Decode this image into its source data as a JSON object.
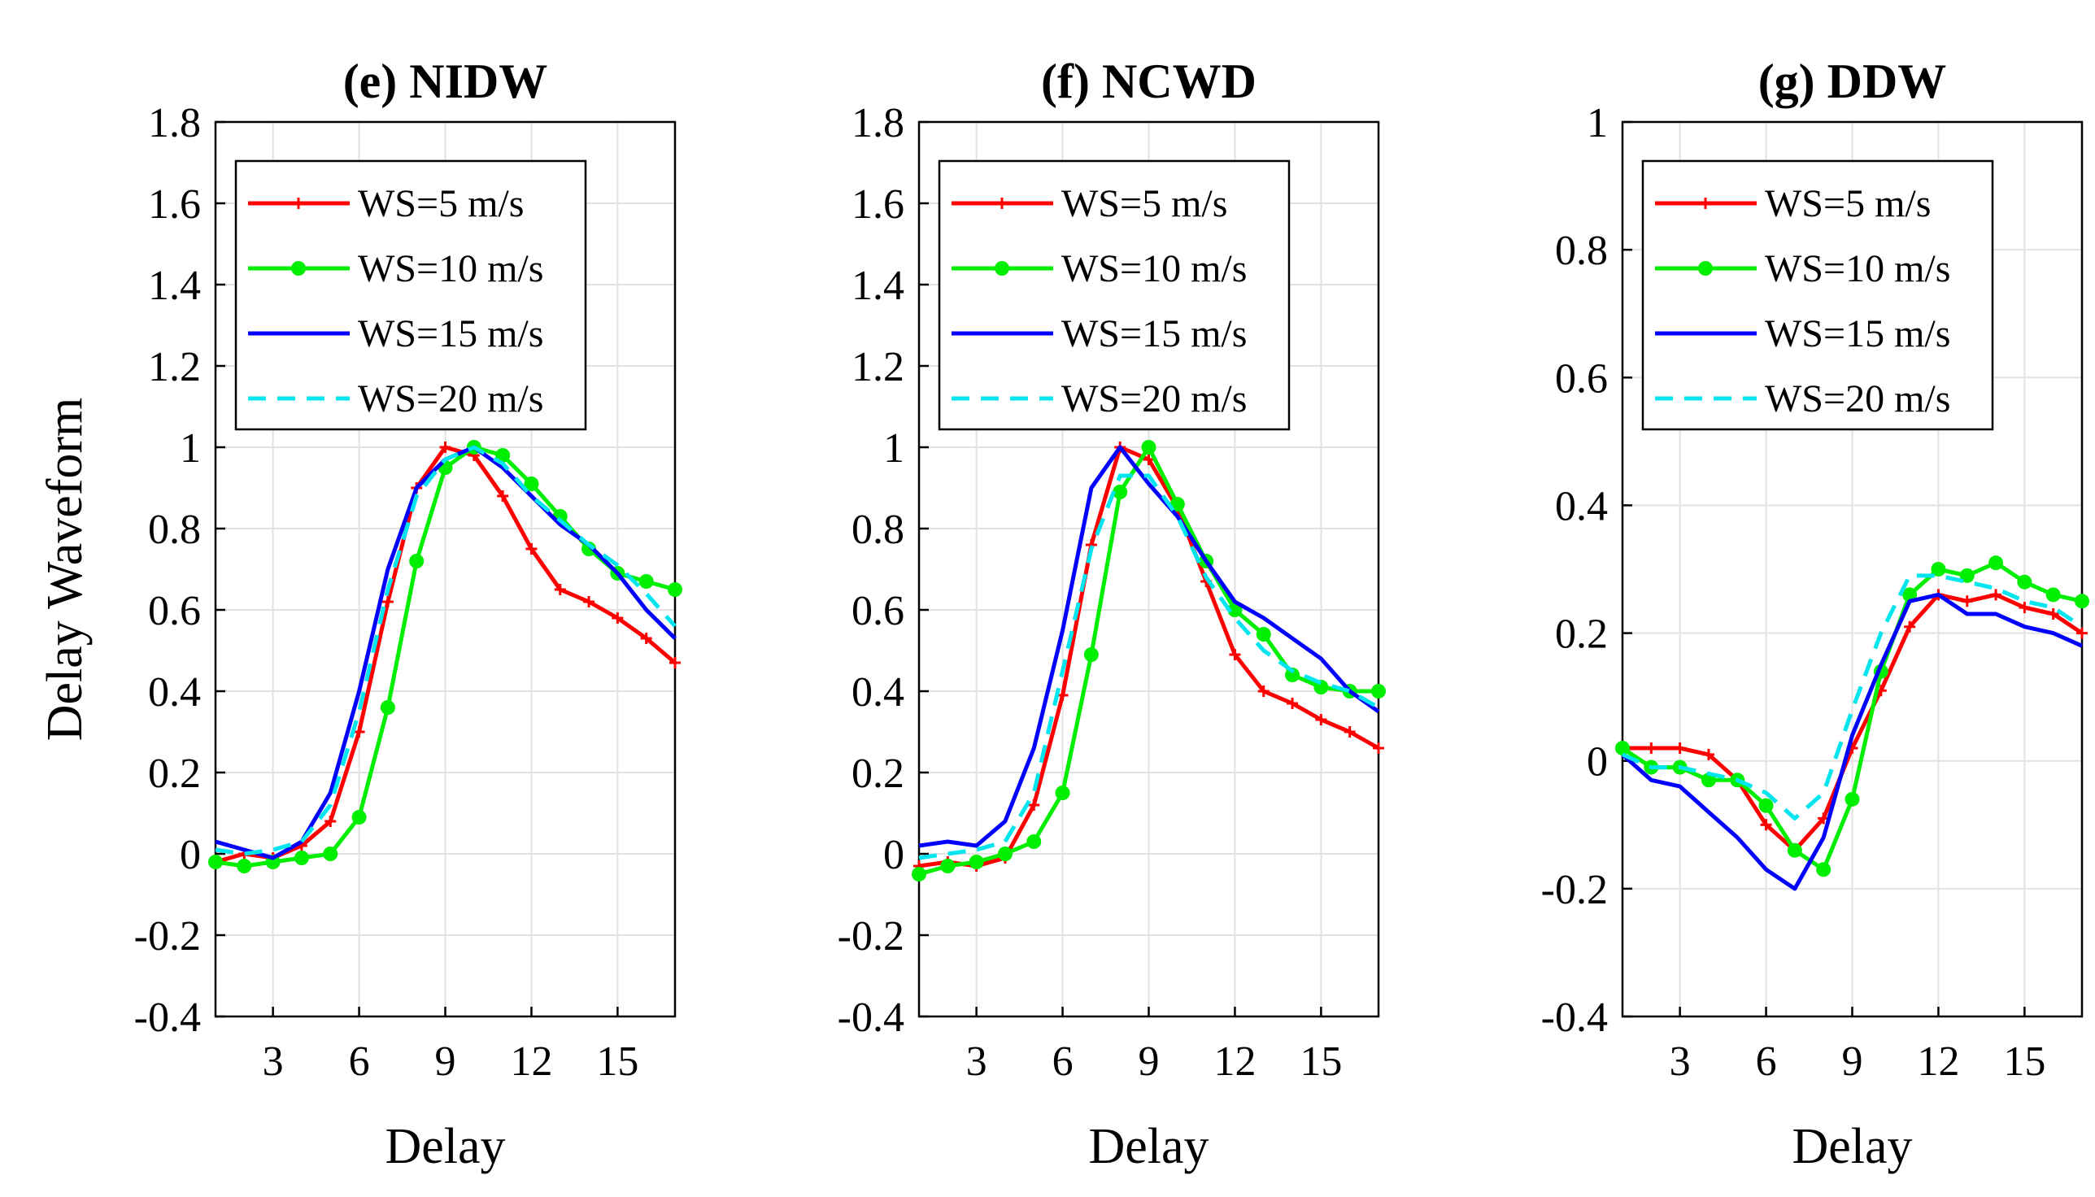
{
  "figure": {
    "ylabel_shared": "Delay Waveform"
  },
  "chart_data": [
    {
      "type": "line",
      "title": "(e) NIDW",
      "xlabel": "Delay",
      "ylabel": "Delay Waveform",
      "xlim": [
        1,
        17
      ],
      "ylim": [
        -0.4,
        1.8
      ],
      "xticks": [
        3,
        6,
        9,
        12,
        15
      ],
      "yticks": [
        -0.4,
        -0.2,
        0,
        0.2,
        0.4,
        0.6,
        0.8,
        1,
        1.2,
        1.4,
        1.6,
        1.8
      ],
      "ytick_labels": [
        "-0.4",
        "-0.2",
        "0",
        "0.2",
        "0.4",
        "0.6",
        "0.8",
        "1",
        "1.2",
        "1.4",
        "1.6",
        "1.8"
      ],
      "xtick_labels": [
        "3",
        "6",
        "9",
        "12",
        "15"
      ],
      "grid": true,
      "legend_position": "top-right",
      "x": [
        1,
        2,
        3,
        4,
        5,
        6,
        7,
        8,
        9,
        10,
        11,
        12,
        13,
        14,
        15,
        16,
        17
      ],
      "series": [
        {
          "name": "WS=5 m/s",
          "color": "#ff0000",
          "style": "solid",
          "marker": "plus",
          "values": [
            -0.02,
            0.0,
            -0.01,
            0.02,
            0.08,
            0.3,
            0.62,
            0.9,
            1.0,
            0.98,
            0.88,
            0.75,
            0.65,
            0.62,
            0.58,
            0.53,
            0.47
          ]
        },
        {
          "name": "WS=10 m/s",
          "color": "#00ee00",
          "style": "solid",
          "marker": "circle",
          "values": [
            -0.02,
            -0.03,
            -0.02,
            -0.01,
            0.0,
            0.09,
            0.36,
            0.72,
            0.95,
            1.0,
            0.98,
            0.91,
            0.83,
            0.75,
            0.69,
            0.67,
            0.65
          ]
        },
        {
          "name": "WS=15 m/s",
          "color": "#0000ff",
          "style": "solid",
          "marker": "none",
          "values": [
            0.03,
            0.01,
            -0.01,
            0.03,
            0.15,
            0.4,
            0.7,
            0.9,
            0.97,
            1.0,
            0.95,
            0.88,
            0.81,
            0.76,
            0.69,
            0.6,
            0.53
          ]
        },
        {
          "name": "WS=20 m/s",
          "color": "#00e5ee",
          "style": "dashed",
          "marker": "none",
          "values": [
            0.01,
            0.0,
            0.01,
            0.03,
            0.12,
            0.35,
            0.65,
            0.88,
            0.97,
            1.0,
            0.96,
            0.88,
            0.82,
            0.76,
            0.71,
            0.64,
            0.56
          ]
        }
      ]
    },
    {
      "type": "line",
      "title": "(f) NCWD",
      "xlabel": "Delay",
      "ylabel": "",
      "xlim": [
        1,
        17
      ],
      "ylim": [
        -0.4,
        1.8
      ],
      "xticks": [
        3,
        6,
        9,
        12,
        15
      ],
      "yticks": [
        -0.4,
        -0.2,
        0,
        0.2,
        0.4,
        0.6,
        0.8,
        1,
        1.2,
        1.4,
        1.6,
        1.8
      ],
      "ytick_labels": [
        "-0.4",
        "-0.2",
        "0",
        "0.2",
        "0.4",
        "0.6",
        "0.8",
        "1",
        "1.2",
        "1.4",
        "1.6",
        "1.8"
      ],
      "xtick_labels": [
        "3",
        "6",
        "9",
        "12",
        "15"
      ],
      "grid": true,
      "legend_position": "top-right",
      "x": [
        1,
        2,
        3,
        4,
        5,
        6,
        7,
        8,
        9,
        10,
        11,
        12,
        13,
        14,
        15,
        16,
        17
      ],
      "series": [
        {
          "name": "WS=5 m/s",
          "color": "#ff0000",
          "style": "solid",
          "marker": "plus",
          "values": [
            -0.03,
            -0.02,
            -0.03,
            -0.01,
            0.12,
            0.39,
            0.76,
            1.0,
            0.97,
            0.85,
            0.67,
            0.49,
            0.4,
            0.37,
            0.33,
            0.3,
            0.26
          ]
        },
        {
          "name": "WS=10 m/s",
          "color": "#00ee00",
          "style": "solid",
          "marker": "circle",
          "values": [
            -0.05,
            -0.03,
            -0.02,
            0.0,
            0.03,
            0.15,
            0.49,
            0.89,
            1.0,
            0.86,
            0.72,
            0.6,
            0.54,
            0.44,
            0.41,
            0.4,
            0.4
          ]
        },
        {
          "name": "WS=15 m/s",
          "color": "#0000ff",
          "style": "solid",
          "marker": "none",
          "values": [
            0.02,
            0.03,
            0.02,
            0.08,
            0.26,
            0.55,
            0.9,
            1.0,
            0.91,
            0.83,
            0.72,
            0.62,
            0.58,
            0.53,
            0.48,
            0.4,
            0.35
          ]
        },
        {
          "name": "WS=20 m/s",
          "color": "#00e5ee",
          "style": "dashed",
          "marker": "none",
          "values": [
            -0.01,
            0.0,
            0.01,
            0.03,
            0.15,
            0.45,
            0.75,
            0.93,
            0.93,
            0.83,
            0.68,
            0.58,
            0.5,
            0.45,
            0.42,
            0.4,
            0.36
          ]
        }
      ]
    },
    {
      "type": "line",
      "title": "(g) DDW",
      "xlabel": "Delay",
      "ylabel": "",
      "xlim": [
        1,
        17
      ],
      "ylim": [
        -0.4,
        1.0
      ],
      "xticks": [
        3,
        6,
        9,
        12,
        15
      ],
      "yticks": [
        -0.4,
        -0.2,
        0,
        0.2,
        0.4,
        0.6,
        0.8,
        1
      ],
      "ytick_labels": [
        "-0.4",
        "-0.2",
        "0",
        "0.2",
        "0.4",
        "0.6",
        "0.8",
        "1"
      ],
      "xtick_labels": [
        "3",
        "6",
        "9",
        "12",
        "15"
      ],
      "grid": true,
      "legend_position": "top-right",
      "x": [
        1,
        2,
        3,
        4,
        5,
        6,
        7,
        8,
        9,
        10,
        11,
        12,
        13,
        14,
        15,
        16,
        17
      ],
      "series": [
        {
          "name": "WS=5 m/s",
          "color": "#ff0000",
          "style": "solid",
          "marker": "plus",
          "values": [
            0.02,
            0.02,
            0.02,
            0.01,
            -0.03,
            -0.1,
            -0.14,
            -0.09,
            0.02,
            0.11,
            0.21,
            0.26,
            0.25,
            0.26,
            0.24,
            0.23,
            0.2
          ]
        },
        {
          "name": "WS=10 m/s",
          "color": "#00ee00",
          "style": "solid",
          "marker": "circle",
          "values": [
            0.02,
            -0.01,
            -0.01,
            -0.03,
            -0.03,
            -0.07,
            -0.14,
            -0.17,
            -0.06,
            0.14,
            0.26,
            0.3,
            0.29,
            0.31,
            0.28,
            0.26,
            0.25
          ]
        },
        {
          "name": "WS=15 m/s",
          "color": "#0000ff",
          "style": "solid",
          "marker": "none",
          "values": [
            0.01,
            -0.03,
            -0.04,
            -0.08,
            -0.12,
            -0.17,
            -0.2,
            -0.12,
            0.04,
            0.15,
            0.25,
            0.26,
            0.23,
            0.23,
            0.21,
            0.2,
            0.18
          ]
        },
        {
          "name": "WS=20 m/s",
          "color": "#00e5ee",
          "style": "dashed",
          "marker": "none",
          "values": [
            0.01,
            -0.01,
            -0.01,
            -0.02,
            -0.03,
            -0.05,
            -0.09,
            -0.05,
            0.08,
            0.2,
            0.29,
            0.29,
            0.28,
            0.27,
            0.25,
            0.24,
            0.21
          ]
        }
      ]
    }
  ]
}
